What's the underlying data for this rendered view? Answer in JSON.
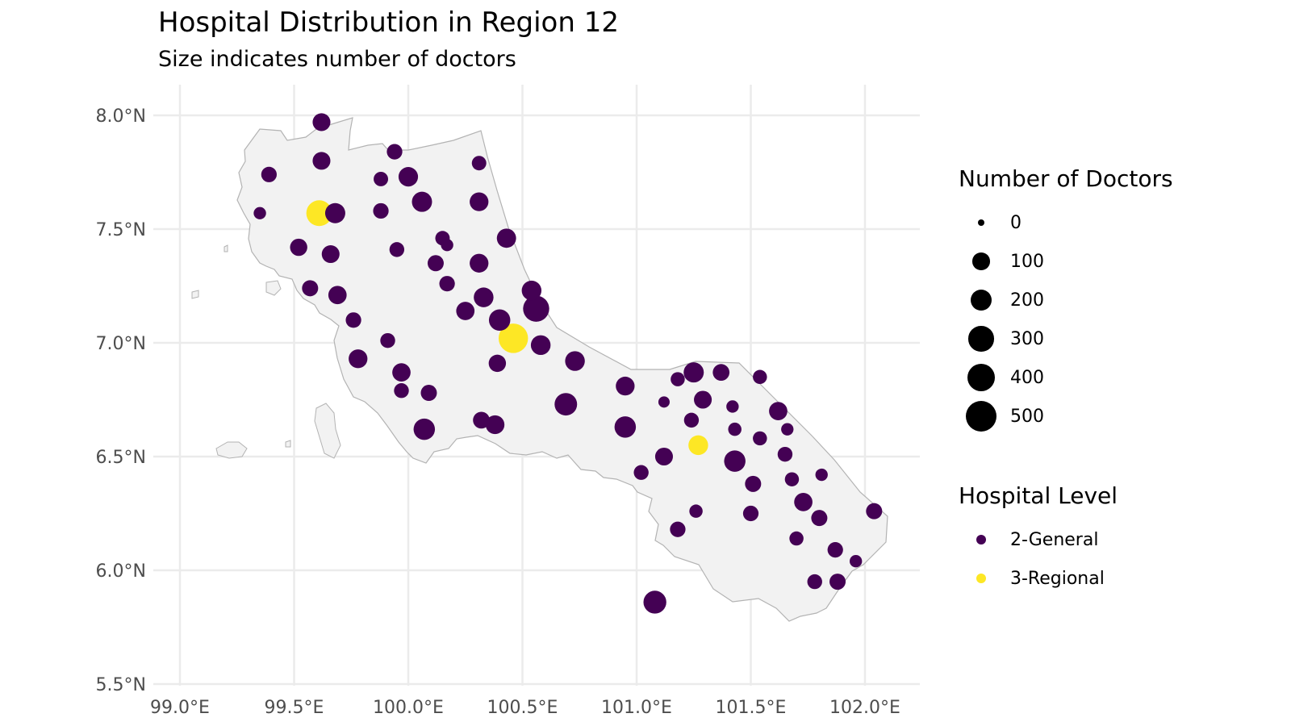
{
  "title": "Hospital Distribution in Region 12",
  "subtitle": "Size indicates number of doctors",
  "axes": {
    "x_ticks": [
      99.0,
      99.5,
      100.0,
      100.5,
      101.0,
      101.5,
      102.0
    ],
    "x_tick_labels": [
      "99.0°E",
      "99.5°E",
      "100.0°E",
      "100.5°E",
      "101.0°E",
      "101.5°E",
      "102.0°E"
    ],
    "y_ticks": [
      5.5,
      6.0,
      6.5,
      7.0,
      7.5,
      8.0
    ],
    "y_tick_labels": [
      "5.5°N",
      "6.0°N",
      "6.5°N",
      "7.0°N",
      "7.5°N",
      "8.0°N"
    ]
  },
  "legend_size": {
    "title": "Number of Doctors",
    "items": [
      {
        "label": "0",
        "value": 0
      },
      {
        "label": "100",
        "value": 100
      },
      {
        "label": "200",
        "value": 200
      },
      {
        "label": "300",
        "value": 300
      },
      {
        "label": "400",
        "value": 400
      },
      {
        "label": "500",
        "value": 500
      }
    ]
  },
  "legend_color": {
    "title": "Hospital Level",
    "items": [
      {
        "label": "2-General",
        "color": "#440154"
      },
      {
        "label": "3-Regional",
        "color": "#FDE725"
      }
    ]
  },
  "colors": {
    "region_fill": "#f2f2f2",
    "region_stroke": "#b3b3b3",
    "grid": "#ebebeb"
  },
  "chart_data": {
    "type": "scatter",
    "xlim": [
      98.95,
      102.25
    ],
    "ylim": [
      5.5,
      8.1
    ],
    "size_variable": "doctors",
    "color_variable": "level",
    "hospitals": [
      {
        "lon": 99.62,
        "lat": 7.97,
        "level": "2-General",
        "doctors": 110
      },
      {
        "lon": 99.39,
        "lat": 7.74,
        "level": "2-General",
        "doctors": 70
      },
      {
        "lon": 99.62,
        "lat": 7.8,
        "level": "2-General",
        "doctors": 110
      },
      {
        "lon": 99.94,
        "lat": 7.84,
        "level": "2-General",
        "doctors": 70
      },
      {
        "lon": 99.88,
        "lat": 7.72,
        "level": "2-General",
        "doctors": 55
      },
      {
        "lon": 100.0,
        "lat": 7.73,
        "level": "2-General",
        "doctors": 145
      },
      {
        "lon": 100.31,
        "lat": 7.79,
        "level": "2-General",
        "doctors": 55
      },
      {
        "lon": 99.35,
        "lat": 7.57,
        "level": "2-General",
        "doctors": 30
      },
      {
        "lon": 99.61,
        "lat": 7.57,
        "level": "3-Regional",
        "doctors": 320
      },
      {
        "lon": 99.68,
        "lat": 7.57,
        "level": "2-General",
        "doctors": 160
      },
      {
        "lon": 99.88,
        "lat": 7.58,
        "level": "2-General",
        "doctors": 70
      },
      {
        "lon": 100.06,
        "lat": 7.62,
        "level": "2-General",
        "doctors": 160
      },
      {
        "lon": 100.31,
        "lat": 7.62,
        "level": "2-General",
        "doctors": 130
      },
      {
        "lon": 99.52,
        "lat": 7.42,
        "level": "2-General",
        "doctors": 100
      },
      {
        "lon": 99.66,
        "lat": 7.39,
        "level": "2-General",
        "doctors": 110
      },
      {
        "lon": 99.95,
        "lat": 7.41,
        "level": "2-General",
        "doctors": 60
      },
      {
        "lon": 100.15,
        "lat": 7.46,
        "level": "2-General",
        "doctors": 55
      },
      {
        "lon": 100.17,
        "lat": 7.43,
        "level": "2-General",
        "doctors": 30
      },
      {
        "lon": 100.12,
        "lat": 7.35,
        "level": "2-General",
        "doctors": 80
      },
      {
        "lon": 100.31,
        "lat": 7.35,
        "level": "2-General",
        "doctors": 130
      },
      {
        "lon": 100.43,
        "lat": 7.46,
        "level": "2-General",
        "doctors": 140
      },
      {
        "lon": 99.57,
        "lat": 7.24,
        "level": "2-General",
        "doctors": 80
      },
      {
        "lon": 99.69,
        "lat": 7.21,
        "level": "2-General",
        "doctors": 120
      },
      {
        "lon": 100.17,
        "lat": 7.26,
        "level": "2-General",
        "doctors": 70
      },
      {
        "lon": 100.33,
        "lat": 7.2,
        "level": "2-General",
        "doctors": 150
      },
      {
        "lon": 100.54,
        "lat": 7.23,
        "level": "2-General",
        "doctors": 150
      },
      {
        "lon": 100.25,
        "lat": 7.14,
        "level": "2-General",
        "doctors": 120
      },
      {
        "lon": 100.56,
        "lat": 7.15,
        "level": "2-General",
        "doctors": 330
      },
      {
        "lon": 99.76,
        "lat": 7.1,
        "level": "2-General",
        "doctors": 70
      },
      {
        "lon": 100.4,
        "lat": 7.1,
        "level": "2-General",
        "doctors": 190
      },
      {
        "lon": 100.46,
        "lat": 7.02,
        "level": "3-Regional",
        "doctors": 450
      },
      {
        "lon": 99.91,
        "lat": 7.01,
        "level": "2-General",
        "doctors": 60
      },
      {
        "lon": 100.58,
        "lat": 6.99,
        "level": "2-General",
        "doctors": 150
      },
      {
        "lon": 99.78,
        "lat": 6.93,
        "level": "2-General",
        "doctors": 130
      },
      {
        "lon": 100.39,
        "lat": 6.91,
        "level": "2-General",
        "doctors": 100
      },
      {
        "lon": 100.73,
        "lat": 6.92,
        "level": "2-General",
        "doctors": 150
      },
      {
        "lon": 99.97,
        "lat": 6.87,
        "level": "2-General",
        "doctors": 120
      },
      {
        "lon": 99.97,
        "lat": 6.79,
        "level": "2-General",
        "doctors": 60
      },
      {
        "lon": 100.09,
        "lat": 6.78,
        "level": "2-General",
        "doctors": 80
      },
      {
        "lon": 100.95,
        "lat": 6.81,
        "level": "2-General",
        "doctors": 130
      },
      {
        "lon": 101.18,
        "lat": 6.84,
        "level": "2-General",
        "doctors": 50
      },
      {
        "lon": 101.25,
        "lat": 6.87,
        "level": "2-General",
        "doctors": 160
      },
      {
        "lon": 101.37,
        "lat": 6.87,
        "level": "2-General",
        "doctors": 90
      },
      {
        "lon": 101.54,
        "lat": 6.85,
        "level": "2-General",
        "doctors": 50
      },
      {
        "lon": 100.69,
        "lat": 6.73,
        "level": "2-General",
        "doctors": 220
      },
      {
        "lon": 101.12,
        "lat": 6.74,
        "level": "2-General",
        "doctors": 20
      },
      {
        "lon": 101.29,
        "lat": 6.75,
        "level": "2-General",
        "doctors": 110
      },
      {
        "lon": 101.42,
        "lat": 6.72,
        "level": "2-General",
        "doctors": 30
      },
      {
        "lon": 101.62,
        "lat": 6.7,
        "level": "2-General",
        "doctors": 120
      },
      {
        "lon": 100.32,
        "lat": 6.66,
        "level": "2-General",
        "doctors": 90
      },
      {
        "lon": 100.07,
        "lat": 6.62,
        "level": "2-General",
        "doctors": 190
      },
      {
        "lon": 100.38,
        "lat": 6.64,
        "level": "2-General",
        "doctors": 130
      },
      {
        "lon": 100.95,
        "lat": 6.63,
        "level": "2-General",
        "doctors": 190
      },
      {
        "lon": 101.24,
        "lat": 6.66,
        "level": "2-General",
        "doctors": 60
      },
      {
        "lon": 101.43,
        "lat": 6.62,
        "level": "2-General",
        "doctors": 40
      },
      {
        "lon": 101.66,
        "lat": 6.62,
        "level": "2-General",
        "doctors": 30
      },
      {
        "lon": 101.54,
        "lat": 6.58,
        "level": "2-General",
        "doctors": 50
      },
      {
        "lon": 101.27,
        "lat": 6.55,
        "level": "3-Regional",
        "doctors": 150
      },
      {
        "lon": 101.65,
        "lat": 6.51,
        "level": "2-General",
        "doctors": 60
      },
      {
        "lon": 101.12,
        "lat": 6.5,
        "level": "2-General",
        "doctors": 110
      },
      {
        "lon": 101.43,
        "lat": 6.48,
        "level": "2-General",
        "doctors": 190
      },
      {
        "lon": 101.02,
        "lat": 6.43,
        "level": "2-General",
        "doctors": 60
      },
      {
        "lon": 101.68,
        "lat": 6.4,
        "level": "2-General",
        "doctors": 50
      },
      {
        "lon": 101.81,
        "lat": 6.42,
        "level": "2-General",
        "doctors": 30
      },
      {
        "lon": 101.51,
        "lat": 6.38,
        "level": "2-General",
        "doctors": 80
      },
      {
        "lon": 101.73,
        "lat": 6.3,
        "level": "2-General",
        "doctors": 120
      },
      {
        "lon": 101.26,
        "lat": 6.26,
        "level": "2-General",
        "doctors": 40
      },
      {
        "lon": 101.5,
        "lat": 6.25,
        "level": "2-General",
        "doctors": 70
      },
      {
        "lon": 101.8,
        "lat": 6.23,
        "level": "2-General",
        "doctors": 80
      },
      {
        "lon": 102.04,
        "lat": 6.26,
        "level": "2-General",
        "doctors": 80
      },
      {
        "lon": 101.18,
        "lat": 6.18,
        "level": "2-General",
        "doctors": 70
      },
      {
        "lon": 101.7,
        "lat": 6.14,
        "level": "2-General",
        "doctors": 50
      },
      {
        "lon": 101.87,
        "lat": 6.09,
        "level": "2-General",
        "doctors": 70
      },
      {
        "lon": 101.96,
        "lat": 6.04,
        "level": "2-General",
        "doctors": 30
      },
      {
        "lon": 101.78,
        "lat": 5.95,
        "level": "2-General",
        "doctors": 60
      },
      {
        "lon": 101.88,
        "lat": 5.95,
        "level": "2-General",
        "doctors": 80
      },
      {
        "lon": 101.08,
        "lat": 5.86,
        "level": "2-General",
        "doctors": 230
      }
    ]
  }
}
